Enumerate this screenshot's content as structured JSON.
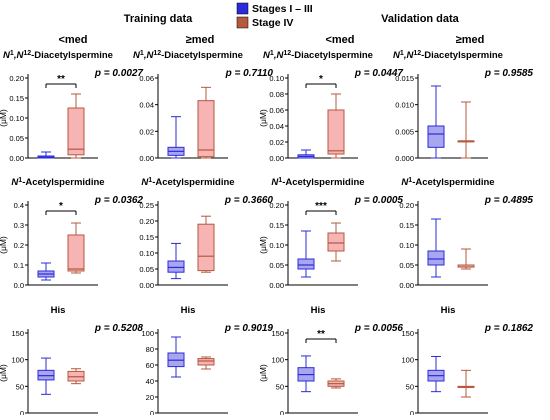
{
  "header": {
    "training_label": "Training data",
    "validation_label": "Validation data",
    "lt_med": "<med",
    "ge_med": "≥med"
  },
  "legend": [
    {
      "label": "Stages I – III",
      "color": "#2b2bd9"
    },
    {
      "label": "Stage IV",
      "color": "#b5583c"
    }
  ],
  "colors": {
    "blue_stroke": "#2b2bd9",
    "blue_fill": "#a9a6f0",
    "red_stroke": "#b5583c",
    "red_fill": "#f7b4b4"
  },
  "chart_data": [
    {
      "type": "box",
      "dataset": "Training data",
      "group": "<med",
      "title": "N1,N12-Diacetylspermine",
      "title_base": "N",
      "title_sup1": "1",
      "title_mid": ",N",
      "title_sup2": "12",
      "title_rest": "-Diacetylspermine",
      "ylabel": "(μM)",
      "ylim": [
        0,
        0.2
      ],
      "yticks": [
        "0.00",
        "0.05",
        "0.10",
        "0.15",
        "0.20"
      ],
      "p_value": "p = 0.0027",
      "sig": "**",
      "series": [
        {
          "name": "Stages I – III",
          "whisker_low": 0.0,
          "q1": 0.0,
          "median": 0.002,
          "q3": 0.005,
          "whisker_high": 0.015
        },
        {
          "name": "Stage IV",
          "whisker_low": 0.0,
          "q1": 0.008,
          "median": 0.022,
          "q3": 0.125,
          "whisker_high": 0.16
        }
      ]
    },
    {
      "type": "box",
      "dataset": "Training data",
      "group": "≥med",
      "title": "N1,N12-Diacetylspermine",
      "title_base": "N",
      "title_sup1": "1",
      "title_mid": ",N",
      "title_sup2": "12",
      "title_rest": "-Diacetylspermine",
      "ylabel": "",
      "ylim": [
        0,
        0.06
      ],
      "yticks": [
        "0.00",
        "0.02",
        "0.04",
        "0.06"
      ],
      "p_value": "p = 0.7110",
      "sig": "",
      "series": [
        {
          "name": "Stages I – III",
          "whisker_low": 0.0,
          "q1": 0.002,
          "median": 0.005,
          "q3": 0.008,
          "whisker_high": 0.031
        },
        {
          "name": "Stage IV",
          "whisker_low": 0.0,
          "q1": 0.001,
          "median": 0.006,
          "q3": 0.043,
          "whisker_high": 0.053
        }
      ]
    },
    {
      "type": "box",
      "dataset": "Validation data",
      "group": "<med",
      "title": "N1,N12-Diacetylspermine",
      "title_base": "N",
      "title_sup1": "1",
      "title_mid": ",N",
      "title_sup2": "12",
      "title_rest": "-Diacetylspermine",
      "ylabel": "(μM)",
      "ylim": [
        0,
        0.1
      ],
      "yticks": [
        "0.00",
        "0.02",
        "0.04",
        "0.06",
        "0.08",
        "0.10"
      ],
      "p_value": "p = 0.0447",
      "sig": "*",
      "series": [
        {
          "name": "Stages I – III",
          "whisker_low": 0.0,
          "q1": 0.0,
          "median": 0.002,
          "q3": 0.004,
          "whisker_high": 0.01
        },
        {
          "name": "Stage IV",
          "whisker_low": 0.0,
          "q1": 0.005,
          "median": 0.009,
          "q3": 0.06,
          "whisker_high": 0.08
        }
      ]
    },
    {
      "type": "box",
      "dataset": "Validation data",
      "group": "≥med",
      "title": "N1,N12-Diacetylspermine",
      "title_base": "N",
      "title_sup1": "1",
      "title_mid": ",N",
      "title_sup2": "12",
      "title_rest": "-Diacetylspermine",
      "ylabel": "",
      "ylim": [
        0,
        0.015
      ],
      "yticks": [
        "0.000",
        "0.005",
        "0.010",
        "0.015"
      ],
      "p_value": "p = 0.9585",
      "sig": "",
      "series": [
        {
          "name": "Stages I – III",
          "whisker_low": 0.0,
          "q1": 0.002,
          "median": 0.0045,
          "q3": 0.006,
          "whisker_high": 0.0135
        },
        {
          "name": "Stage IV",
          "whisker_low": 0.0,
          "q1": 0.0032,
          "median": 0.0032,
          "q3": 0.0032,
          "whisker_high": 0.0105
        }
      ]
    },
    {
      "type": "box",
      "dataset": "Training data",
      "group": "<med",
      "title": "N1-Acetylspermidine",
      "title_base": "N",
      "title_sup1": "1",
      "title_mid": "",
      "title_sup2": "",
      "title_rest": "-Acetylspermidine",
      "ylabel": "(μM)",
      "ylim": [
        0,
        0.4
      ],
      "yticks": [
        "0.0",
        "0.1",
        "0.2",
        "0.3",
        "0.4"
      ],
      "p_value": "p = 0.0362",
      "sig": "*",
      "series": [
        {
          "name": "Stages I – III",
          "whisker_low": 0.025,
          "q1": 0.04,
          "median": 0.055,
          "q3": 0.07,
          "whisker_high": 0.11
        },
        {
          "name": "Stage IV",
          "whisker_low": 0.06,
          "q1": 0.07,
          "median": 0.08,
          "q3": 0.25,
          "whisker_high": 0.31
        }
      ]
    },
    {
      "type": "box",
      "dataset": "Training data",
      "group": "≥med",
      "title": "N1-Acetylspermidine",
      "title_base": "N",
      "title_sup1": "1",
      "title_mid": "",
      "title_sup2": "",
      "title_rest": "-Acetylspermidine",
      "ylabel": "",
      "ylim": [
        0,
        0.25
      ],
      "yticks": [
        "0.00",
        "0.05",
        "0.10",
        "0.15",
        "0.20",
        "0.25"
      ],
      "p_value": "p = 0.3660",
      "sig": "",
      "series": [
        {
          "name": "Stages I – III",
          "whisker_low": 0.02,
          "q1": 0.04,
          "median": 0.055,
          "q3": 0.075,
          "whisker_high": 0.13
        },
        {
          "name": "Stage IV",
          "whisker_low": 0.04,
          "q1": 0.045,
          "median": 0.09,
          "q3": 0.19,
          "whisker_high": 0.215
        }
      ]
    },
    {
      "type": "box",
      "dataset": "Validation data",
      "group": "<med",
      "title": "N1-Acetylspermidine",
      "title_base": "N",
      "title_sup1": "1",
      "title_mid": "",
      "title_sup2": "",
      "title_rest": "-Acetylspermidine",
      "ylabel": "(μM)",
      "ylim": [
        0,
        0.2
      ],
      "yticks": [
        "0.00",
        "0.05",
        "0.10",
        "0.15",
        "0.20"
      ],
      "p_value": "p = 0.0005",
      "sig": "***",
      "series": [
        {
          "name": "Stages I – III",
          "whisker_low": 0.02,
          "q1": 0.04,
          "median": 0.05,
          "q3": 0.065,
          "whisker_high": 0.135
        },
        {
          "name": "Stage IV",
          "whisker_low": 0.06,
          "q1": 0.085,
          "median": 0.105,
          "q3": 0.13,
          "whisker_high": 0.155
        }
      ]
    },
    {
      "type": "box",
      "dataset": "Validation data",
      "group": "≥med",
      "title": "N1-Acetylspermidine",
      "title_base": "N",
      "title_sup1": "1",
      "title_mid": "",
      "title_sup2": "",
      "title_rest": "-Acetylspermidine",
      "ylabel": "",
      "ylim": [
        0,
        0.2
      ],
      "yticks": [
        "0.00",
        "0.05",
        "0.10",
        "0.15",
        "0.20"
      ],
      "p_value": "p = 0.4895",
      "sig": "",
      "series": [
        {
          "name": "Stages I – III",
          "whisker_low": 0.02,
          "q1": 0.05,
          "median": 0.065,
          "q3": 0.085,
          "whisker_high": 0.165
        },
        {
          "name": "Stage IV",
          "whisker_low": 0.04,
          "q1": 0.045,
          "median": 0.045,
          "q3": 0.05,
          "whisker_high": 0.09
        }
      ]
    },
    {
      "type": "box",
      "dataset": "Training data",
      "group": "<med",
      "title": "His",
      "title_base": "His",
      "title_sup1": "",
      "title_mid": "",
      "title_sup2": "",
      "title_rest": "",
      "ylabel": "(μM)",
      "ylim": [
        0,
        150
      ],
      "yticks": [
        "0",
        "50",
        "100",
        "150"
      ],
      "p_value": "p = 0.5208",
      "sig": "",
      "series": [
        {
          "name": "Stages I – III",
          "whisker_low": 35,
          "q1": 62,
          "median": 70,
          "q3": 80,
          "whisker_high": 103
        },
        {
          "name": "Stage IV",
          "whisker_low": 55,
          "q1": 60,
          "median": 68,
          "q3": 78,
          "whisker_high": 83
        }
      ]
    },
    {
      "type": "box",
      "dataset": "Training data",
      "group": "≥med",
      "title": "His",
      "title_base": "His",
      "title_sup1": "",
      "title_mid": "",
      "title_sup2": "",
      "title_rest": "",
      "ylabel": "",
      "ylim": [
        0,
        100
      ],
      "yticks": [
        "0",
        "20",
        "40",
        "60",
        "80",
        "100"
      ],
      "p_value": "p = 0.9019",
      "sig": "",
      "series": [
        {
          "name": "Stages I – III",
          "whisker_low": 45,
          "q1": 58,
          "median": 66,
          "q3": 75,
          "whisker_high": 95
        },
        {
          "name": "Stage IV",
          "whisker_low": 55,
          "q1": 60,
          "median": 65,
          "q3": 68,
          "whisker_high": 70
        }
      ]
    },
    {
      "type": "box",
      "dataset": "Validation data",
      "group": "<med",
      "title": "His",
      "title_base": "His",
      "title_sup1": "",
      "title_mid": "",
      "title_sup2": "",
      "title_rest": "",
      "ylabel": "(μM)",
      "ylim": [
        0,
        150
      ],
      "yticks": [
        "0",
        "50",
        "100",
        "150"
      ],
      "p_value": "p = 0.0056",
      "sig": "**",
      "series": [
        {
          "name": "Stages I – III",
          "whisker_low": 40,
          "q1": 60,
          "median": 72,
          "q3": 85,
          "whisker_high": 107
        },
        {
          "name": "Stage IV",
          "whisker_low": 47,
          "q1": 50,
          "median": 55,
          "q3": 60,
          "whisker_high": 64
        }
      ]
    },
    {
      "type": "box",
      "dataset": "Validation data",
      "group": "≥med",
      "title": "His",
      "title_base": "His",
      "title_sup1": "",
      "title_mid": "",
      "title_sup2": "",
      "title_rest": "",
      "ylabel": "",
      "ylim": [
        0,
        150
      ],
      "yticks": [
        "0",
        "50",
        "100",
        "150"
      ],
      "p_value": "p = 0.1862",
      "sig": "",
      "series": [
        {
          "name": "Stages I – III",
          "whisker_low": 40,
          "q1": 60,
          "median": 70,
          "q3": 80,
          "whisker_high": 106
        },
        {
          "name": "Stage IV",
          "whisker_low": 30,
          "q1": 48,
          "median": 48,
          "q3": 50,
          "whisker_high": 80
        }
      ]
    }
  ]
}
